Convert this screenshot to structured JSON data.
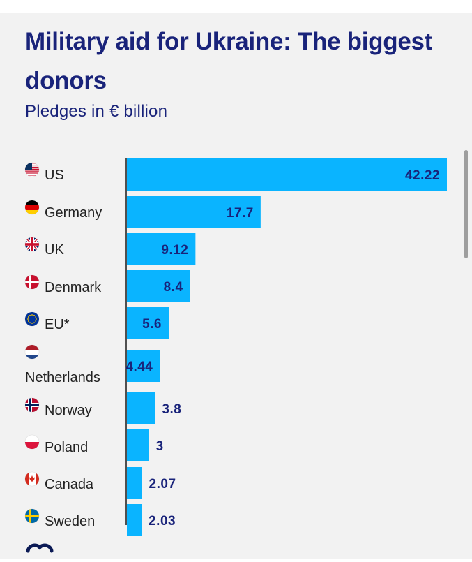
{
  "header": {
    "title": "Military aid for Ukraine: The biggest donors",
    "subtitle": "Pledges in € billion"
  },
  "colors": {
    "bar": "#0ab4ff",
    "text_dark": "#19237a",
    "label": "#222222",
    "background": "#f2f2f2"
  },
  "chart_data": {
    "type": "bar",
    "orientation": "horizontal",
    "title": "Military aid for Ukraine: The biggest donors",
    "subtitle": "Pledges in € billion",
    "xlabel": "",
    "ylabel": "",
    "xlim": [
      0,
      42.22
    ],
    "categories": [
      "US",
      "Germany",
      "UK",
      "Denmark",
      "EU*",
      "Netherlands",
      "Norway",
      "Poland",
      "Canada",
      "Sweden"
    ],
    "values": [
      42.22,
      17.7,
      9.12,
      8.4,
      5.6,
      4.44,
      3.8,
      3,
      2.07,
      2.03
    ],
    "value_labels": [
      "42.22",
      "17.7",
      "9.12",
      "8.4",
      "5.6",
      "4.44",
      "3.8",
      "3",
      "2.07",
      "2.03"
    ],
    "flags": [
      "us-flag-icon",
      "germany-flag-icon",
      "uk-flag-icon",
      "denmark-flag-icon",
      "eu-flag-icon",
      "netherlands-flag-icon",
      "norway-flag-icon",
      "poland-flag-icon",
      "canada-flag-icon",
      "sweden-flag-icon"
    ]
  }
}
